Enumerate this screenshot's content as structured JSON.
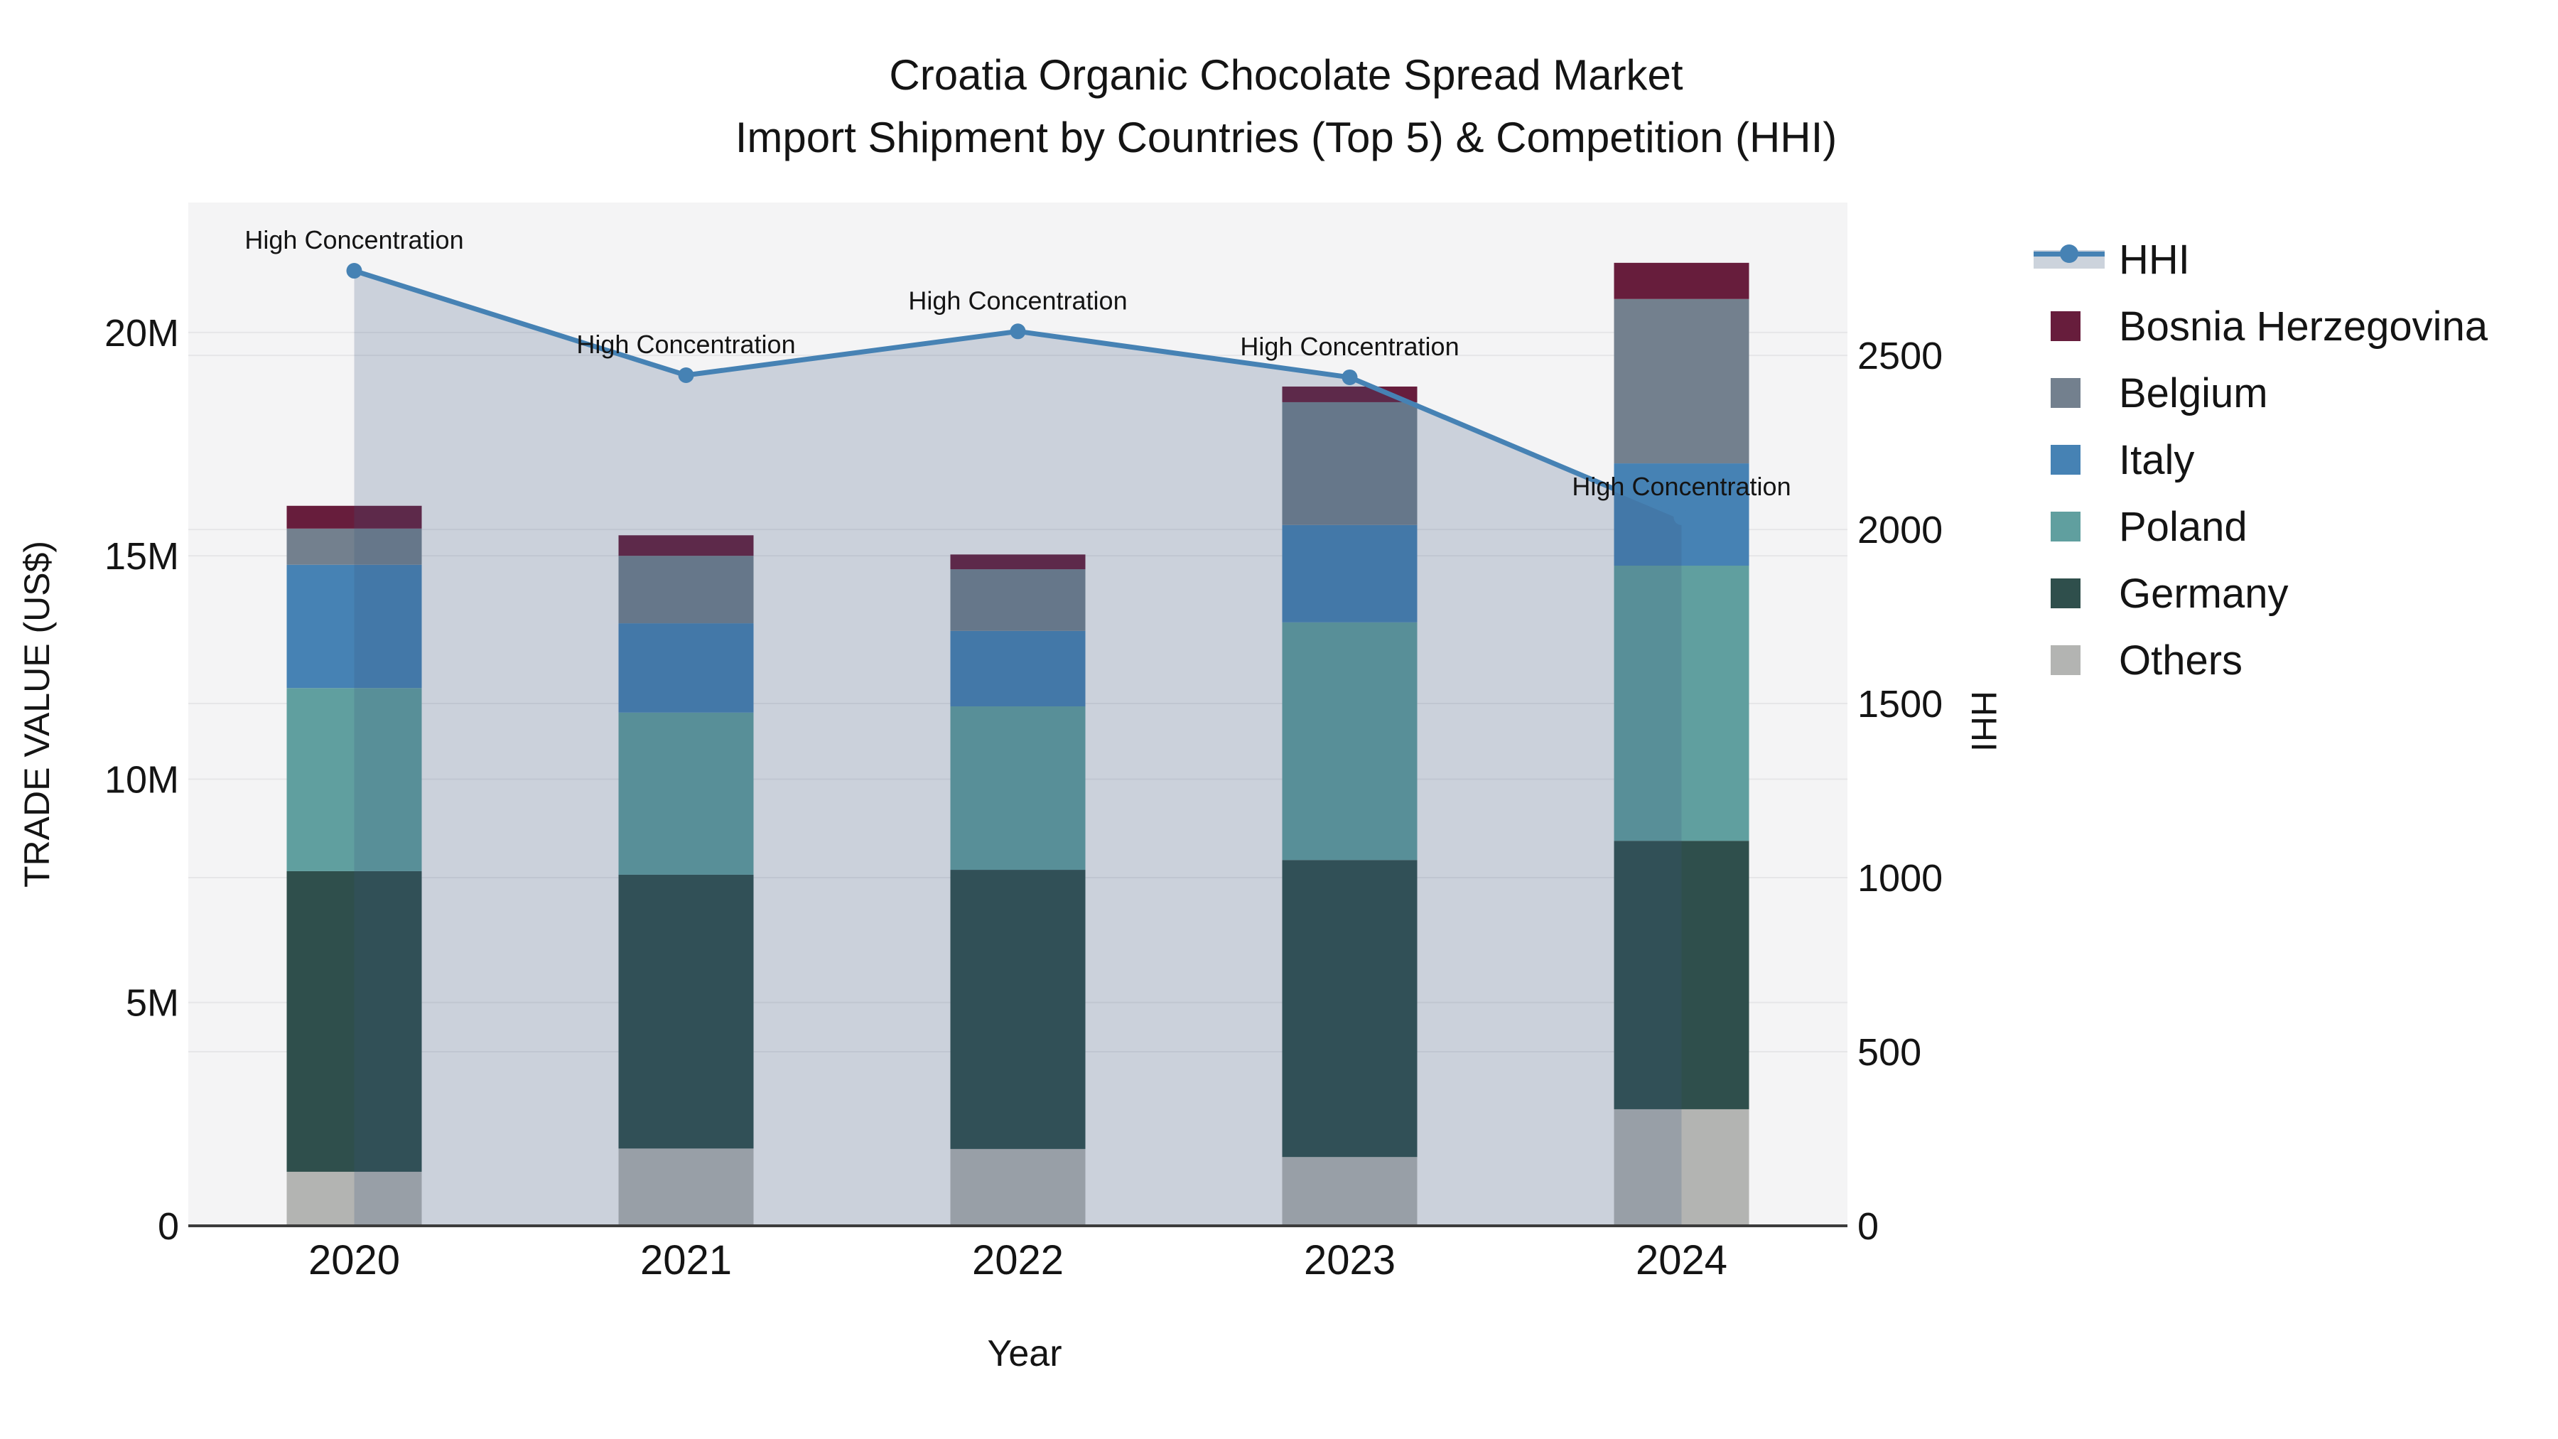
{
  "title": {
    "line1": "Croatia Organic Chocolate Spread Market",
    "line2": "Import Shipment by Countries (Top 5) & Competition (HHI)"
  },
  "chart_data": {
    "type": "bar",
    "subtype": "stacked-bars-with-line-overlay-and-area-fill",
    "categories": [
      "2020",
      "2021",
      "2022",
      "2023",
      "2024"
    ],
    "unit": "Million US$",
    "series": [
      {
        "name": "Others",
        "color": "#b3b4b2",
        "values": [
          1.21,
          1.73,
          1.72,
          1.54,
          2.61
        ]
      },
      {
        "name": "Germany",
        "color": "#2f4f4c",
        "values": [
          6.73,
          6.13,
          6.25,
          6.65,
          6.01
        ]
      },
      {
        "name": "Poland",
        "color": "#609f9f",
        "values": [
          4.1,
          3.63,
          3.66,
          5.32,
          6.16
        ]
      },
      {
        "name": "Italy",
        "color": "#4682b4",
        "values": [
          2.76,
          2.0,
          1.69,
          2.18,
          2.29
        ]
      },
      {
        "name": "Belgium",
        "color": "#73808e",
        "values": [
          0.81,
          1.51,
          1.38,
          2.75,
          3.68
        ]
      },
      {
        "name": "Bosnia Herzegovina",
        "color": "#671d3c",
        "values": [
          0.51,
          0.46,
          0.33,
          0.35,
          0.81
        ]
      }
    ],
    "stack_totals_musd": [
      16.12,
      15.46,
      15.03,
      18.79,
      21.56
    ],
    "line_series": {
      "name": "HHI",
      "color": "#4682b4",
      "values": [
        2743,
        2443,
        2569,
        2437,
        2035
      ]
    },
    "annotations": [
      "High Concentration",
      "High Concentration",
      "High Concentration",
      "High Concentration",
      "High Concentration"
    ],
    "left_axis": {
      "title": "TRADE VALUE (US$)",
      "tick_labels": [
        "0",
        "5M",
        "10M",
        "15M",
        "20M"
      ],
      "tick_values_musd": [
        0,
        5,
        10,
        15,
        20
      ],
      "max_musd": 22.91
    },
    "right_axis": {
      "title": "HHI",
      "tick_labels": [
        "0",
        "500",
        "1000",
        "1500",
        "2000",
        "2500"
      ],
      "tick_values": [
        0,
        500,
        1000,
        1500,
        2000,
        2500
      ],
      "max": 2939
    },
    "x_axis": {
      "title": "Year"
    },
    "legend_position": "right",
    "grid": "horizontal gridlines for both value axes",
    "legend": [
      {
        "label": "HHI",
        "type": "line",
        "color": "#4682b4"
      },
      {
        "label": "Bosnia Herzegovina",
        "type": "patch",
        "color": "#671d3c"
      },
      {
        "label": "Belgium",
        "type": "patch",
        "color": "#73808e"
      },
      {
        "label": "Italy",
        "type": "patch",
        "color": "#4682b4"
      },
      {
        "label": "Poland",
        "type": "patch",
        "color": "#609f9f"
      },
      {
        "label": "Germany",
        "type": "patch",
        "color": "#2f4f4c"
      },
      {
        "label": "Others",
        "type": "patch",
        "color": "#b3b4b2"
      }
    ]
  },
  "colors": {
    "plot_bg": "#f4f4f5",
    "grid": "#e6e6e8",
    "axis_line": "#3c3c3c",
    "area_fill": "rgba(58,85,126,0.22)",
    "hhi_line": "#4682b4",
    "text": "#141414"
  }
}
